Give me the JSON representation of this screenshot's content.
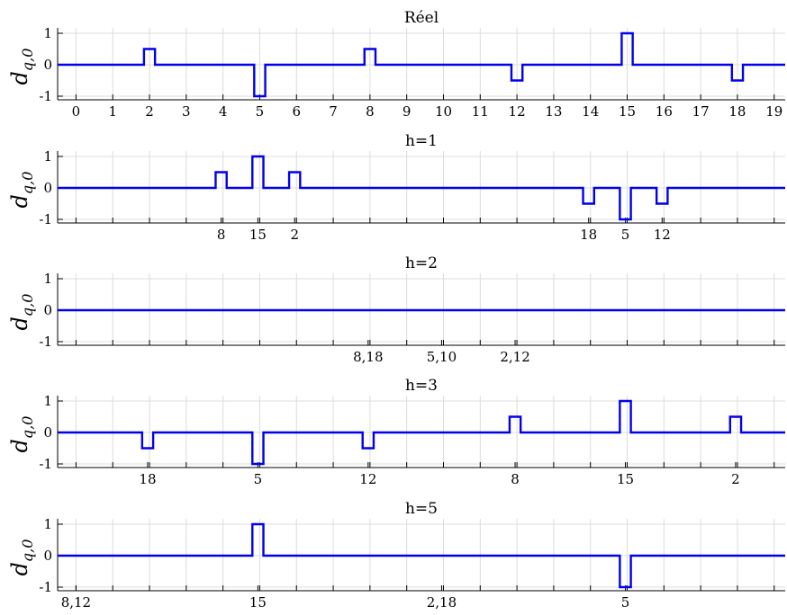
{
  "chart_data": [
    {
      "type": "line",
      "title": "Réel",
      "ylabel": "d",
      "ylabel_sub": "q,0",
      "ylim": [
        -1,
        1
      ],
      "yticks": [
        "-1",
        "0",
        "1"
      ],
      "xlim": [
        -0.5,
        19.3
      ],
      "xtick_labels": [
        {
          "x": 0,
          "label": "0"
        },
        {
          "x": 1,
          "label": "1"
        },
        {
          "x": 2,
          "label": "2"
        },
        {
          "x": 3,
          "label": "3"
        },
        {
          "x": 4,
          "label": "4"
        },
        {
          "x": 5,
          "label": "5"
        },
        {
          "x": 6,
          "label": "6"
        },
        {
          "x": 7,
          "label": "7"
        },
        {
          "x": 8,
          "label": "8"
        },
        {
          "x": 9,
          "label": "9"
        },
        {
          "x": 10,
          "label": "10"
        },
        {
          "x": 11,
          "label": "11"
        },
        {
          "x": 12,
          "label": "12"
        },
        {
          "x": 13,
          "label": "13"
        },
        {
          "x": 14,
          "label": "14"
        },
        {
          "x": 15,
          "label": "15"
        },
        {
          "x": 16,
          "label": "16"
        },
        {
          "x": 17,
          "label": "17"
        },
        {
          "x": 18,
          "label": "18"
        },
        {
          "x": 19,
          "label": "19"
        }
      ],
      "minor_ticks": [],
      "grid": true,
      "series": [
        {
          "color": "#0000ee",
          "pulses": [
            {
              "start": 1.85,
              "end": 2.15,
              "value": 0.5
            },
            {
              "start": 4.85,
              "end": 5.15,
              "value": -1
            },
            {
              "start": 7.85,
              "end": 8.15,
              "value": 0.5
            },
            {
              "start": 11.85,
              "end": 12.15,
              "value": -0.5
            },
            {
              "start": 14.85,
              "end": 15.15,
              "value": 1
            },
            {
              "start": 17.85,
              "end": 18.15,
              "value": -0.5
            }
          ]
        }
      ]
    },
    {
      "type": "line",
      "title": "h=1",
      "ylabel": "d",
      "ylabel_sub": "q,0",
      "ylim": [
        -1,
        1
      ],
      "yticks": [
        "-1",
        "0",
        "1"
      ],
      "xlim": [
        -0.5,
        19.3
      ],
      "xtick_labels": [
        {
          "x": 3.95,
          "label": "8"
        },
        {
          "x": 4.95,
          "label": "15"
        },
        {
          "x": 5.95,
          "label": "2"
        },
        {
          "x": 13.95,
          "label": "18"
        },
        {
          "x": 14.95,
          "label": "5"
        },
        {
          "x": 15.95,
          "label": "12"
        }
      ],
      "minor_ticks": [
        0,
        1,
        2,
        3,
        4,
        5,
        6,
        7,
        8,
        9,
        10,
        11,
        12,
        13,
        14,
        15,
        16,
        17,
        18,
        19
      ],
      "grid": true,
      "series": [
        {
          "color": "#0000ee",
          "pulses": [
            {
              "start": 3.8,
              "end": 4.1,
              "value": 0.5
            },
            {
              "start": 4.8,
              "end": 5.1,
              "value": 1
            },
            {
              "start": 5.8,
              "end": 6.1,
              "value": 0.5
            },
            {
              "start": 13.8,
              "end": 14.1,
              "value": -0.5
            },
            {
              "start": 14.8,
              "end": 15.1,
              "value": -1
            },
            {
              "start": 15.8,
              "end": 16.1,
              "value": -0.5
            }
          ]
        }
      ]
    },
    {
      "type": "line",
      "title": "h=2",
      "ylabel": "d",
      "ylabel_sub": "q,0",
      "ylim": [
        -1,
        1
      ],
      "yticks": [
        "-1",
        "0",
        "1"
      ],
      "xlim": [
        -0.5,
        19.3
      ],
      "xtick_labels": [
        {
          "x": 7.95,
          "label": "8,18"
        },
        {
          "x": 9.95,
          "label": "5,10"
        },
        {
          "x": 11.95,
          "label": "2,12"
        }
      ],
      "minor_ticks": [
        0,
        1,
        2,
        3,
        4,
        5,
        6,
        7,
        8,
        9,
        10,
        11,
        12,
        13,
        14,
        15,
        16,
        17,
        18,
        19
      ],
      "grid": true,
      "series": [
        {
          "color": "#0000ee",
          "pulses": []
        }
      ]
    },
    {
      "type": "line",
      "title": "h=3",
      "ylabel": "d",
      "ylabel_sub": "q,0",
      "ylim": [
        -1,
        1
      ],
      "yticks": [
        "-1",
        "0",
        "1"
      ],
      "xlim": [
        -0.5,
        19.3
      ],
      "xtick_labels": [
        {
          "x": 1.95,
          "label": "18"
        },
        {
          "x": 4.95,
          "label": "5"
        },
        {
          "x": 7.95,
          "label": "12"
        },
        {
          "x": 11.95,
          "label": "8"
        },
        {
          "x": 14.95,
          "label": "15"
        },
        {
          "x": 17.95,
          "label": "2"
        }
      ],
      "minor_ticks": [
        0,
        1,
        2,
        3,
        4,
        5,
        6,
        7,
        8,
        9,
        10,
        11,
        12,
        13,
        14,
        15,
        16,
        17,
        18,
        19
      ],
      "grid": true,
      "series": [
        {
          "color": "#0000ee",
          "pulses": [
            {
              "start": 1.8,
              "end": 2.1,
              "value": -0.5
            },
            {
              "start": 4.8,
              "end": 5.1,
              "value": -1
            },
            {
              "start": 7.8,
              "end": 8.1,
              "value": -0.5
            },
            {
              "start": 11.8,
              "end": 12.1,
              "value": 0.5
            },
            {
              "start": 14.8,
              "end": 15.1,
              "value": 1
            },
            {
              "start": 17.8,
              "end": 18.1,
              "value": 0.5
            }
          ]
        }
      ]
    },
    {
      "type": "line",
      "title": "h=5",
      "ylabel": "d",
      "ylabel_sub": "q,0",
      "ylim": [
        -1,
        1
      ],
      "yticks": [
        "-1",
        "0",
        "1"
      ],
      "xlim": [
        -0.5,
        19.3
      ],
      "xtick_labels": [
        {
          "x": 0,
          "label": "8,12"
        },
        {
          "x": 4.95,
          "label": "15"
        },
        {
          "x": 9.95,
          "label": "2,18"
        },
        {
          "x": 14.95,
          "label": "5"
        }
      ],
      "minor_ticks": [
        0,
        1,
        2,
        3,
        4,
        5,
        6,
        7,
        8,
        9,
        10,
        11,
        12,
        13,
        14,
        15,
        16,
        17,
        18,
        19
      ],
      "grid": true,
      "series": [
        {
          "color": "#0000ee",
          "pulses": [
            {
              "start": 4.8,
              "end": 5.1,
              "value": 1
            },
            {
              "start": 14.8,
              "end": 15.1,
              "value": -1
            }
          ]
        }
      ]
    }
  ]
}
